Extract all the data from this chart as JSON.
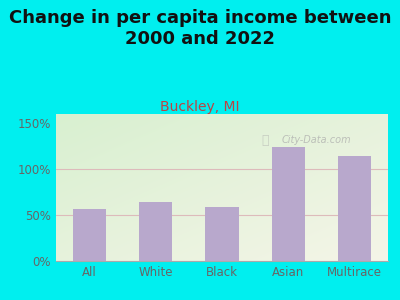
{
  "title": "Change in per capita income between\n2000 and 2022",
  "subtitle": "Buckley, MI",
  "categories": [
    "All",
    "White",
    "Black",
    "Asian",
    "Multirace"
  ],
  "values": [
    57,
    64,
    59,
    124,
    114
  ],
  "bar_color": "#b8a8cc",
  "background_outer": "#00efef",
  "title_fontsize": 13,
  "subtitle_fontsize": 10,
  "subtitle_color": "#bb4444",
  "title_color": "#111111",
  "tick_color": "#666666",
  "gridline_color": "#ddbbbb",
  "ylim": [
    0,
    160
  ],
  "yticks": [
    0,
    50,
    100,
    150
  ],
  "ytick_labels": [
    "0%",
    "50%",
    "100%",
    "150%"
  ],
  "watermark": "City-Data.com",
  "plot_bg_top_left": "#d8f0d0",
  "plot_bg_bottom_right": "#f5f5e8"
}
